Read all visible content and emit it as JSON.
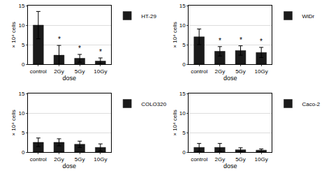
{
  "chart_data": [
    {
      "type": "bar",
      "xlabel": "dose",
      "ylabel": "× 10⁴ cells",
      "categories": [
        "control",
        "2Gy",
        "5Gy",
        "10Gy"
      ],
      "series": [
        {
          "name": "HT-29",
          "color": "#1a1a1a",
          "values": [
            10.0,
            2.3,
            1.5,
            0.8
          ],
          "errors": [
            3.5,
            2.5,
            1.0,
            0.8
          ]
        }
      ],
      "ylim": [
        0,
        15
      ],
      "yticks": [
        0,
        5,
        10,
        15
      ],
      "grid": true,
      "legend": "right",
      "annotations": [
        {
          "category": "2Gy",
          "text": "*"
        },
        {
          "category": "5Gy",
          "text": "*"
        },
        {
          "category": "10Gy",
          "text": "*"
        }
      ]
    },
    {
      "type": "bar",
      "xlabel": "dose",
      "ylabel": "× 10⁴ cells",
      "categories": [
        "control",
        "2Gy",
        "5Gy",
        "10Gy"
      ],
      "series": [
        {
          "name": "WiDr",
          "color": "#1a1a1a",
          "values": [
            7.0,
            3.3,
            3.5,
            3.0
          ],
          "errors": [
            2.0,
            1.2,
            1.2,
            1.3
          ]
        }
      ],
      "ylim": [
        0,
        15
      ],
      "yticks": [
        0,
        5,
        10,
        15
      ],
      "grid": true,
      "legend": "right",
      "annotations": [
        {
          "category": "2Gy",
          "text": "*"
        },
        {
          "category": "5Gy",
          "text": "*"
        },
        {
          "category": "10Gy",
          "text": "*"
        }
      ]
    },
    {
      "type": "bar",
      "xlabel": "dose",
      "ylabel": "× 10⁴ cells",
      "categories": [
        "control",
        "2Gy",
        "5Gy",
        "10Gy"
      ],
      "series": [
        {
          "name": "COLO320",
          "color": "#1a1a1a",
          "values": [
            2.5,
            2.5,
            2.0,
            1.2
          ],
          "errors": [
            1.1,
            0.9,
            0.8,
            0.9
          ]
        }
      ],
      "ylim": [
        0,
        15
      ],
      "yticks": [
        0,
        5,
        10,
        15
      ],
      "grid": true,
      "legend": "right"
    },
    {
      "type": "bar",
      "xlabel": "dose",
      "ylabel": "× 10⁴ cells",
      "categories": [
        "control",
        "2Gy",
        "5Gy",
        "10Gy"
      ],
      "series": [
        {
          "name": "Caco-2",
          "color": "#1a1a1a",
          "values": [
            1.2,
            1.2,
            0.6,
            0.5
          ],
          "errors": [
            1.0,
            1.0,
            0.5,
            0.3
          ]
        }
      ],
      "ylim": [
        0,
        15
      ],
      "yticks": [
        0,
        5,
        10,
        15
      ],
      "grid": true,
      "legend": "right"
    }
  ]
}
